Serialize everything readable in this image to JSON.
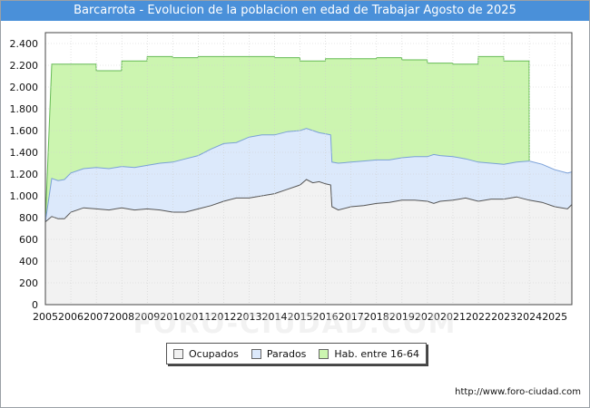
{
  "header": {
    "title": "Barcarrota  -  Evolucion de la poblacion en edad de Trabajar Agosto de 2025"
  },
  "watermark": "FORO-CIUDAD.COM",
  "footer": {
    "source": "http://www.foro-ciudad.com"
  },
  "colors": {
    "ocupados": "#f2f2f2",
    "parados": "#dce9fb",
    "hab": "#ccf5b0",
    "ocupados_line": "#555555",
    "parados_line": "#7aa0d8",
    "hab_line": "#66bb55",
    "title_bg": "#4a90d9"
  },
  "chart_data": {
    "type": "area",
    "title": "Barcarrota - Evolucion de la poblacion en edad de Trabajar Agosto de 2025",
    "xlabel": "",
    "ylabel": "",
    "xlim": [
      2005.0,
      2025.67
    ],
    "ylim": [
      0,
      2500
    ],
    "yticks": [
      0,
      200,
      400,
      600,
      800,
      1000,
      1200,
      1400,
      1600,
      1800,
      2000,
      2200,
      2400
    ],
    "ytick_labels": [
      "0",
      "200",
      "400",
      "600",
      "800",
      "1.000",
      "1.200",
      "1.400",
      "1.600",
      "1.800",
      "2.000",
      "2.200",
      "2.400"
    ],
    "xticks": [
      2005,
      2006,
      2007,
      2008,
      2009,
      2010,
      2011,
      2012,
      2013,
      2014,
      2015,
      2016,
      2017,
      2018,
      2019,
      2020,
      2021,
      2022,
      2023,
      2024,
      2025
    ],
    "xtick_labels": [
      "2005",
      "2006",
      "2007",
      "2008",
      "2009",
      "2010",
      "2011",
      "2012",
      "2013",
      "2014",
      "2015",
      "2016",
      "2017",
      "2018",
      "2019",
      "2020",
      "2021",
      "2022",
      "2023",
      "2024",
      "2025"
    ],
    "grid": true,
    "legend": [
      "Ocupados",
      "Parados",
      "Hab. entre 16-64"
    ],
    "legend_position": "bottom-center",
    "series": [
      {
        "name": "Ocupados",
        "x": [
          2005.0,
          2005.25,
          2005.5,
          2005.75,
          2006.0,
          2006.5,
          2007.0,
          2007.5,
          2008.0,
          2008.5,
          2009.0,
          2009.5,
          2010.0,
          2010.5,
          2011.0,
          2011.5,
          2012.0,
          2012.5,
          2013.0,
          2013.5,
          2014.0,
          2014.5,
          2015.0,
          2015.25,
          2015.5,
          2015.75,
          2016.0,
          2016.2,
          2016.25,
          2016.5,
          2017.0,
          2017.5,
          2018.0,
          2018.5,
          2019.0,
          2019.5,
          2020.0,
          2020.25,
          2020.5,
          2021.0,
          2021.5,
          2022.0,
          2022.5,
          2023.0,
          2023.5,
          2024.0,
          2024.5,
          2025.0,
          2025.5,
          2025.67
        ],
        "values": [
          760,
          810,
          790,
          790,
          850,
          890,
          880,
          870,
          890,
          870,
          880,
          870,
          850,
          850,
          880,
          910,
          950,
          980,
          980,
          1000,
          1020,
          1060,
          1100,
          1150,
          1120,
          1130,
          1110,
          1100,
          900,
          870,
          900,
          910,
          930,
          940,
          960,
          960,
          950,
          930,
          950,
          960,
          980,
          950,
          970,
          970,
          990,
          960,
          940,
          900,
          880,
          920
        ]
      },
      {
        "name": "Parados",
        "x": [
          2005.0,
          2005.25,
          2005.5,
          2005.75,
          2006.0,
          2006.5,
          2007.0,
          2007.5,
          2008.0,
          2008.5,
          2009.0,
          2009.5,
          2010.0,
          2010.5,
          2011.0,
          2011.5,
          2012.0,
          2012.5,
          2013.0,
          2013.5,
          2014.0,
          2014.5,
          2015.0,
          2015.25,
          2015.5,
          2015.75,
          2016.0,
          2016.2,
          2016.25,
          2016.5,
          2017.0,
          2017.5,
          2018.0,
          2018.5,
          2019.0,
          2019.5,
          2020.0,
          2020.25,
          2020.5,
          2021.0,
          2021.5,
          2022.0,
          2022.5,
          2023.0,
          2023.5,
          2024.0,
          2024.5,
          2025.0,
          2025.5,
          2025.67
        ],
        "values": [
          760,
          1160,
          1140,
          1150,
          1210,
          1250,
          1260,
          1250,
          1270,
          1260,
          1280,
          1300,
          1310,
          1340,
          1370,
          1430,
          1480,
          1490,
          1540,
          1560,
          1560,
          1590,
          1600,
          1620,
          1600,
          1580,
          1570,
          1560,
          1310,
          1300,
          1310,
          1320,
          1330,
          1330,
          1350,
          1360,
          1360,
          1380,
          1370,
          1360,
          1340,
          1310,
          1300,
          1290,
          1310,
          1320,
          1290,
          1240,
          1210,
          1220
        ]
      },
      {
        "name": "Hab. entre 16-64",
        "x": [
          2005.0,
          2005.25,
          2006.0,
          2006.5,
          2006.99,
          2007.0,
          2007.99,
          2008.0,
          2008.99,
          2009.0,
          2009.99,
          2010.0,
          2010.99,
          2011.0,
          2011.99,
          2012.0,
          2012.99,
          2013.0,
          2013.99,
          2014.0,
          2014.99,
          2015.0,
          2015.99,
          2016.0,
          2016.99,
          2017.0,
          2017.99,
          2018.0,
          2018.99,
          2019.0,
          2019.99,
          2020.0,
          2020.99,
          2021.0,
          2021.99,
          2022.0,
          2022.99,
          2023.0,
          2023.99,
          2024.0
        ],
        "values": [
          760,
          2210,
          2210,
          2210,
          2210,
          2150,
          2150,
          2240,
          2240,
          2280,
          2280,
          2270,
          2270,
          2280,
          2280,
          2280,
          2280,
          2280,
          2280,
          2270,
          2270,
          2240,
          2240,
          2260,
          2260,
          2260,
          2260,
          2270,
          2270,
          2250,
          2250,
          2220,
          2220,
          2210,
          2210,
          2280,
          2280,
          2240,
          2240,
          1320
        ]
      }
    ]
  }
}
